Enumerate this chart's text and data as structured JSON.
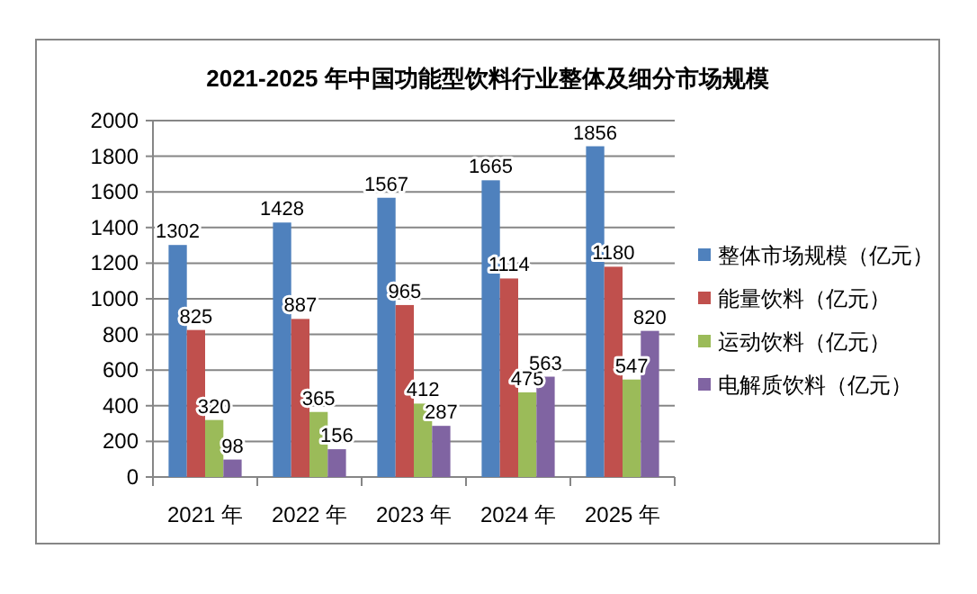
{
  "chart_data": {
    "type": "bar",
    "title": "2021-2025 年中国功能型饮料行业整体及细分市场规模",
    "categories": [
      "2021 年",
      "2022 年",
      "2023 年",
      "2024 年",
      "2025 年"
    ],
    "series": [
      {
        "name": "整体市场规模（亿元）",
        "color": "#4f81bd",
        "values": [
          1302,
          1428,
          1567,
          1665,
          1856
        ]
      },
      {
        "name": "能量饮料（亿元）",
        "color": "#c0504d",
        "values": [
          825,
          887,
          965,
          1114,
          1180
        ]
      },
      {
        "name": "运动饮料（亿元）",
        "color": "#9bbb59",
        "values": [
          320,
          365,
          412,
          475,
          547
        ]
      },
      {
        "name": "电解质饮料（亿元）",
        "color": "#8064a2",
        "values": [
          98,
          156,
          287,
          563,
          820
        ]
      }
    ],
    "ylim": [
      0,
      2000
    ],
    "yticks": [
      0,
      200,
      400,
      600,
      800,
      1000,
      1200,
      1400,
      1600,
      1800,
      2000
    ],
    "grid": "y",
    "legend": "right",
    "data_labels": true
  }
}
